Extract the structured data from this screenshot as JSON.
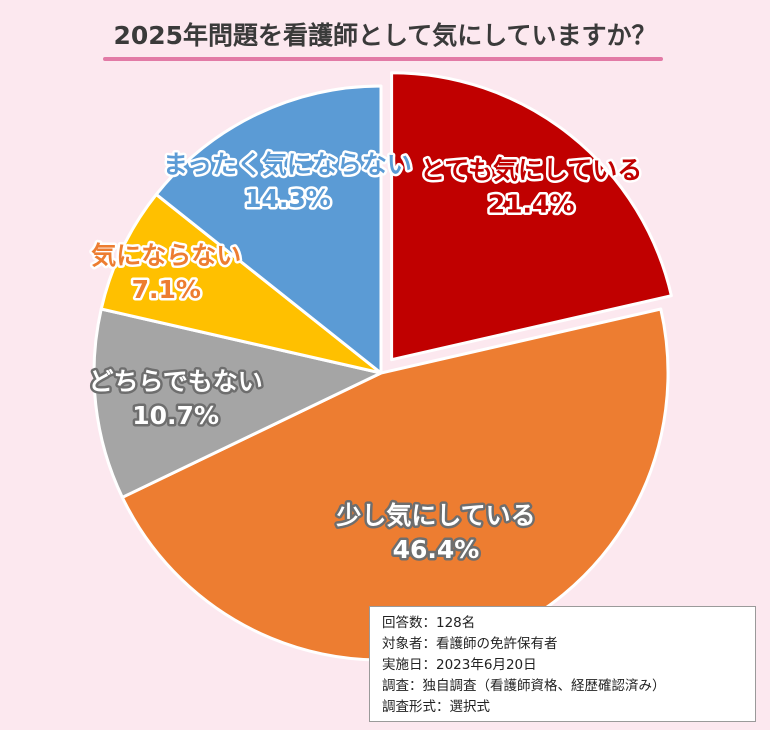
{
  "title": "2025年問題を看護師として気にしていますか？",
  "colors": {
    "background": "#fce8ef",
    "title_rule": "#e27aa6"
  },
  "chart_data": {
    "type": "pie",
    "title": "2025年問題を看護師として気にしていますか？",
    "slices": [
      {
        "label": "とても気にしている",
        "value": 21.4,
        "value_label": "21.4%",
        "color": "#c00000",
        "label_color": "#c00000",
        "exploded": true
      },
      {
        "label": "少し気にしている",
        "value": 46.4,
        "value_label": "46.4%",
        "color": "#ed7d31",
        "label_color": "#ffffff",
        "exploded": false
      },
      {
        "label": "どちらでもない",
        "value": 10.7,
        "value_label": "10.7%",
        "color": "#a5a5a5",
        "label_color": "#ffffff",
        "exploded": false
      },
      {
        "label": "気にならない",
        "value": 7.1,
        "value_label": "7.1%",
        "color": "#ffc000",
        "label_color": "#ed7d31",
        "exploded": false
      },
      {
        "label": "まったく気にならない",
        "value": 14.3,
        "value_label": "14.3%",
        "color": "#5b9bd5",
        "label_color": "#5b9bd5",
        "exploded": false
      }
    ]
  },
  "notes": [
    "回答数：128名",
    "対象者：看護師の免許保有者",
    "実施日：2023年6月20日",
    "調査：独自調査（看護師資格、経歴確認済み）",
    "調査形式：選択式"
  ]
}
